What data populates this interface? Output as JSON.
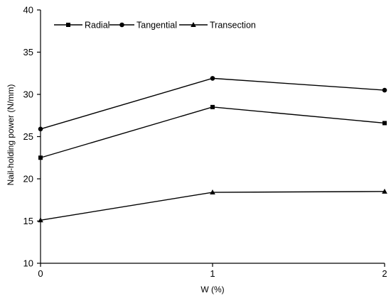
{
  "chart_data": {
    "type": "line",
    "x": [
      0,
      1,
      2
    ],
    "x_ticks": [
      "0",
      "1",
      "2"
    ],
    "xlabel": "W (%)",
    "ylabel": "Nail-holding power (N/mm)",
    "xlim": [
      0,
      2
    ],
    "ylim": [
      10,
      40
    ],
    "y_ticks": [
      "10",
      "15",
      "20",
      "25",
      "30",
      "35",
      "40"
    ],
    "grid": false,
    "legend_position": "top-left",
    "series": [
      {
        "name": "Radial",
        "marker": "square",
        "values": [
          22.5,
          28.5,
          26.6
        ]
      },
      {
        "name": "Tangential",
        "marker": "circle",
        "values": [
          25.9,
          31.9,
          30.5
        ]
      },
      {
        "name": "Transection",
        "marker": "triangle",
        "values": [
          15.1,
          18.4,
          18.5
        ]
      }
    ],
    "colors": {
      "line": "#000000",
      "background": "#ffffff"
    }
  }
}
